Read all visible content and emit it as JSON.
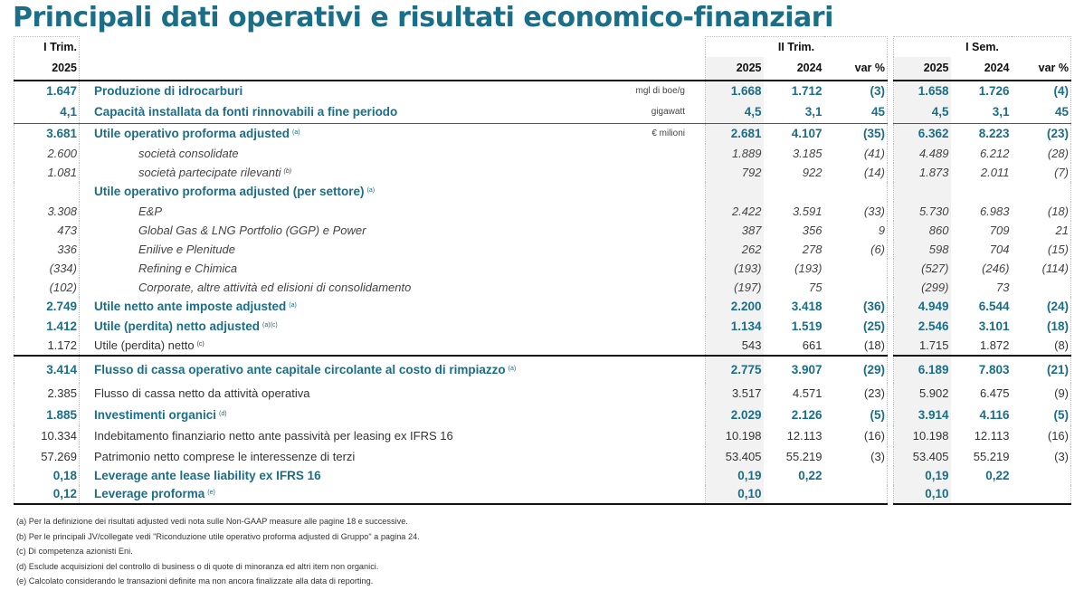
{
  "title": "Principali dati operativi e risultati economico-finanziari",
  "header": {
    "q1": "I Trim.",
    "q2": "II Trim.",
    "h1": "I Sem.",
    "q1_year": "2025",
    "q2_cols": [
      "2025",
      "2024",
      "var %"
    ],
    "h1_cols": [
      "2025",
      "2024",
      "var %"
    ]
  },
  "rows": [
    {
      "type": "b",
      "q1": "1.647",
      "label": "Produzione di idrocarburi",
      "note": "",
      "unit": "mgl di boe/g",
      "v": [
        "1.668",
        "1.712",
        "(3)",
        "1.658",
        "1.726",
        "(4)"
      ]
    },
    {
      "type": "b",
      "q1": "4,1",
      "label": "Capacità installata da fonti rinnovabili a fine periodo",
      "note": "",
      "unit": "gigawatt",
      "v": [
        "4,5",
        "3,1",
        "45",
        "4,5",
        "3,1",
        "45"
      ]
    },
    {
      "type": "b",
      "q1": "3.681",
      "label": "Utile operativo proforma adjusted",
      "note": "(a)",
      "unit": "€ milioni",
      "v": [
        "2.681",
        "4.107",
        "(35)",
        "6.362",
        "8.223",
        "(23)"
      ]
    },
    {
      "type": "i",
      "q1": "2.600",
      "label": "società consolidate",
      "note": "",
      "unit": "",
      "v": [
        "1.889",
        "3.185",
        "(41)",
        "4.489",
        "6.212",
        "(28)"
      ]
    },
    {
      "type": "i",
      "q1": "1.081",
      "label": "società partecipate rilevanti",
      "note": "(b)",
      "unit": "",
      "v": [
        "792",
        "922",
        "(14)",
        "1.873",
        "2.011",
        "(7)"
      ]
    },
    {
      "type": "b",
      "q1": "",
      "label": "Utile operativo proforma adjusted (per settore)",
      "note": "(a)",
      "unit": "",
      "v": [
        "",
        "",
        "",
        "",
        "",
        ""
      ]
    },
    {
      "type": "i",
      "q1": "3.308",
      "label": "E&P",
      "note": "",
      "unit": "",
      "v": [
        "2.422",
        "3.591",
        "(33)",
        "5.730",
        "6.983",
        "(18)"
      ]
    },
    {
      "type": "i",
      "q1": "473",
      "label": "Global Gas & LNG Portfolio (GGP) e Power",
      "note": "",
      "unit": "",
      "v": [
        "387",
        "356",
        "9",
        "860",
        "709",
        "21"
      ]
    },
    {
      "type": "i",
      "q1": "336",
      "label": "Enilive e Plenitude",
      "note": "",
      "unit": "",
      "v": [
        "262",
        "278",
        "(6)",
        "598",
        "704",
        "(15)"
      ]
    },
    {
      "type": "i",
      "q1": "(334)",
      "label": "Refining e Chimica",
      "note": "",
      "unit": "",
      "v": [
        "(193)",
        "(193)",
        "",
        "(527)",
        "(246)",
        "(114)"
      ]
    },
    {
      "type": "i",
      "q1": "(102)",
      "label": "Corporate, altre attività ed elisioni di consolidamento",
      "note": "",
      "unit": "",
      "v": [
        "(197)",
        "75",
        "",
        "(299)",
        "73",
        ""
      ]
    },
    {
      "type": "b",
      "q1": "2.749",
      "label": "Utile netto ante imposte adjusted",
      "note": "(a)",
      "unit": "",
      "v": [
        "2.200",
        "3.418",
        "(36)",
        "4.949",
        "6.544",
        "(24)"
      ]
    },
    {
      "type": "b",
      "q1": "1.412",
      "label": "Utile (perdita) netto adjusted",
      "note": "(a)(c)",
      "unit": "",
      "v": [
        "1.134",
        "1.519",
        "(25)",
        "2.546",
        "3.101",
        "(18)"
      ]
    },
    {
      "type": "n",
      "q1": "1.172",
      "label": "Utile (perdita) netto",
      "note": "(c)",
      "unit": "",
      "v": [
        "543",
        "661",
        "(18)",
        "1.715",
        "1.872",
        "(8)"
      ]
    },
    {
      "type": "b",
      "q1": "3.414",
      "label": "Flusso di cassa operativo ante capitale circolante al costo di rimpiazzo",
      "note": "(a)",
      "unit": "",
      "v": [
        "2.775",
        "3.907",
        "(29)",
        "6.189",
        "7.803",
        "(21)"
      ]
    },
    {
      "type": "n",
      "q1": "2.385",
      "label": "Flusso di cassa netto da attività operativa",
      "note": "",
      "unit": "",
      "v": [
        "3.517",
        "4.571",
        "(23)",
        "5.902",
        "6.475",
        "(9)"
      ]
    },
    {
      "type": "b",
      "q1": "1.885",
      "label": "Investimenti organici",
      "note": "(d)",
      "unit": "",
      "v": [
        "2.029",
        "2.126",
        "(5)",
        "3.914",
        "4.116",
        "(5)"
      ]
    },
    {
      "type": "n",
      "q1": "10.334",
      "label": "Indebitamento finanziario netto ante passività per leasing ex IFRS 16",
      "note": "",
      "unit": "",
      "v": [
        "10.198",
        "12.113",
        "(16)",
        "10.198",
        "12.113",
        "(16)"
      ]
    },
    {
      "type": "n",
      "q1": "57.269",
      "label": "Patrimonio netto comprese le interessenze di terzi",
      "note": "",
      "unit": "",
      "v": [
        "53.405",
        "55.219",
        "(3)",
        "53.405",
        "55.219",
        "(3)"
      ]
    },
    {
      "type": "b",
      "q1": "0,18",
      "label": "Leverage ante lease liability ex IFRS 16",
      "note": "",
      "unit": "",
      "v": [
        "0,19",
        "0,22",
        "",
        "0,19",
        "0,22",
        ""
      ]
    },
    {
      "type": "b",
      "q1": "0,12",
      "label": "Leverage proforma",
      "note": "(e)",
      "unit": "",
      "v": [
        "0,10",
        "",
        "",
        "0,10",
        "",
        ""
      ]
    }
  ],
  "footnotes": [
    "(a) Per la definizione dei risultati adjusted vedi nota sulle Non-GAAP measure alle pagine 18 e successive.",
    "(b) Per le principali JV/collegate vedi \"Riconduzione utile operativo proforma adjusted di Gruppo\" a pagina 24.",
    "(c) Di competenza azionisti Eni.",
    "(d) Esclude acquisizioni del controllo di business o di quote di minoranza ed altri item non organici.",
    "(e) Calcolato considerando le transazioni definite ma non ancora finalizzate alla data di reporting."
  ],
  "colors": {
    "accent": "#1b6e87"
  }
}
